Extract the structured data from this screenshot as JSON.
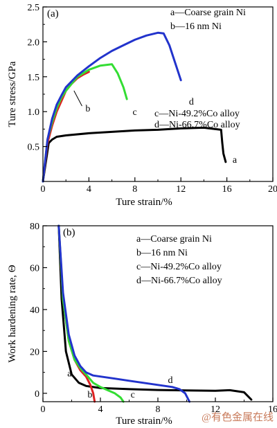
{
  "chart_data": [
    {
      "panel_label": "(a)",
      "type": "line",
      "xlabel": "Ture strain/%",
      "ylabel": "Ture stress/GPa",
      "xlim": [
        0,
        20
      ],
      "ylim": [
        0,
        2.5
      ],
      "xticks": [
        0,
        4,
        8,
        12,
        16,
        20
      ],
      "yticks": [
        0.5,
        1.0,
        1.5,
        2.0,
        2.5
      ],
      "ytick_labels": [
        "0.5",
        "1.0",
        "1.5",
        "2.0",
        "2.5"
      ],
      "legend_top": [
        "a—Coarse grain Ni",
        "b—16 nm Ni"
      ],
      "legend_bottom": [
        "c—Ni-49.2%Co alloy",
        "d—Ni-66.7%Co alloy"
      ],
      "series": [
        {
          "name": "a",
          "color": "#000000",
          "label_at": [
            16.5,
            0.27
          ],
          "x": [
            0,
            0.5,
            0.8,
            1.2,
            2,
            4,
            6,
            8,
            10,
            12,
            14,
            15.5,
            15.6,
            15.7,
            15.9
          ],
          "y": [
            0,
            0.55,
            0.6,
            0.64,
            0.66,
            0.69,
            0.71,
            0.73,
            0.74,
            0.76,
            0.77,
            0.74,
            0.55,
            0.4,
            0.28
          ]
        },
        {
          "name": "b",
          "color": "#dd2222",
          "label_at": [
            3.7,
            1.0
          ],
          "x": [
            0,
            0.4,
            0.8,
            1.2,
            1.6,
            2,
            2.5,
            3,
            3.5,
            4
          ],
          "y": [
            0,
            0.55,
            0.8,
            1.0,
            1.15,
            1.3,
            1.4,
            1.48,
            1.53,
            1.57
          ]
        },
        {
          "name": "c",
          "color": "#33dd33",
          "label_at": [
            7.8,
            0.95
          ],
          "x": [
            0,
            0.4,
            0.8,
            1.2,
            1.6,
            2,
            3,
            4,
            5,
            6,
            6.5,
            7,
            7.3
          ],
          "y": [
            0,
            0.6,
            0.85,
            1.05,
            1.2,
            1.3,
            1.5,
            1.6,
            1.66,
            1.68,
            1.55,
            1.35,
            1.18
          ]
        },
        {
          "name": "d",
          "color": "#2233cc",
          "label_at": [
            12.7,
            1.1
          ],
          "x": [
            0,
            0.4,
            0.8,
            1.2,
            1.6,
            2,
            3,
            4,
            5,
            6,
            7,
            8,
            9,
            10,
            10.5,
            11,
            11.5,
            12
          ],
          "y": [
            0,
            0.6,
            0.9,
            1.1,
            1.23,
            1.35,
            1.52,
            1.65,
            1.77,
            1.87,
            1.95,
            2.03,
            2.09,
            2.13,
            2.12,
            1.95,
            1.7,
            1.45
          ]
        }
      ]
    },
    {
      "panel_label": "(b)",
      "type": "line",
      "xlabel": "Ture strain/%",
      "ylabel": "Work hardening rate, Θ",
      "xlim": [
        0,
        16
      ],
      "ylim": [
        -4,
        80
      ],
      "xticks": [
        0,
        4,
        8,
        12,
        16
      ],
      "yticks": [
        0,
        20,
        40,
        60,
        80
      ],
      "legend": [
        "a—Coarse grain Ni",
        "b—16 nm Ni",
        "c—Ni-49.2%Co alloy",
        "d—Ni-66.7%Co alloy"
      ],
      "series": [
        {
          "name": "a",
          "color": "#000000",
          "label_at": [
            1.7,
            8
          ],
          "x": [
            1.1,
            1.3,
            1.6,
            2,
            2.5,
            3,
            4,
            6,
            8,
            10,
            12,
            13,
            14,
            14.5
          ],
          "y": [
            80,
            45,
            20,
            9,
            5,
            3.5,
            2.5,
            2,
            1.6,
            1.4,
            1.2,
            1.5,
            0.5,
            -3
          ]
        },
        {
          "name": "b",
          "color": "#dd2222",
          "label_at": [
            3.1,
            -2
          ],
          "x": [
            1.1,
            1.4,
            1.8,
            2.2,
            2.6,
            3,
            3.3,
            3.5,
            3.6
          ],
          "y": [
            80,
            45,
            25,
            16,
            11,
            8,
            4,
            0,
            -4
          ]
        },
        {
          "name": "c",
          "color": "#33dd33",
          "label_at": [
            6.1,
            -2
          ],
          "x": [
            1.1,
            1.4,
            1.8,
            2.2,
            2.6,
            3,
            3.5,
            4,
            4.5,
            5,
            5.4,
            5.6
          ],
          "y": [
            80,
            45,
            25,
            16,
            12,
            9,
            5,
            3,
            1.5,
            0,
            -2,
            -4
          ]
        },
        {
          "name": "d",
          "color": "#2233cc",
          "label_at": [
            8.7,
            5
          ],
          "x": [
            1.1,
            1.4,
            1.8,
            2.2,
            2.6,
            3,
            3.5,
            4,
            5,
            6,
            7,
            8,
            9,
            9.5,
            9.9,
            10.2
          ],
          "y": [
            80,
            48,
            28,
            18,
            13,
            10,
            8.5,
            8,
            7,
            6,
            5,
            4,
            3,
            2,
            0,
            -4
          ]
        }
      ]
    }
  ],
  "watermark": "@有色金属在线"
}
